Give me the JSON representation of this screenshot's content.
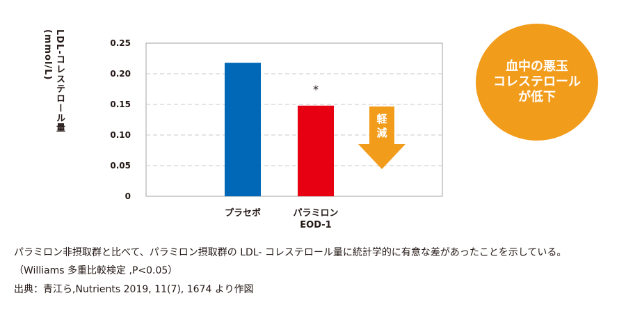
{
  "chart_data": {
    "type": "bar",
    "ylabel": "LDL-コレステロール量(mmol/L)",
    "ylim": [
      0,
      0.25
    ],
    "yticks": [
      "0",
      "0.05",
      "0.10",
      "0.15",
      "0.20",
      "0.25"
    ],
    "categories": [
      "プラセボ",
      "パラミロン\nEOD-1"
    ],
    "values": [
      0.218,
      0.148
    ],
    "colors": [
      "#0068b7",
      "#e60012"
    ],
    "annotations": [
      "*"
    ],
    "grid": true,
    "arrow_label": "軽減",
    "arrow_color": "#f29c1b"
  },
  "badge": {
    "text": "血中の悪玉\nコレステロール\nが低下",
    "color": "#f29c1b"
  },
  "captions": [
    "パラミロン非摂取群と比べて、パラミロン摂取群の LDL- コレステロール量に統計学的に有意な差があったことを示している。",
    "（Williams 多重比較検定 ,P<0.05）",
    "出典：青江ら,Nutrients 2019, 11(7), 1674 より作図"
  ]
}
